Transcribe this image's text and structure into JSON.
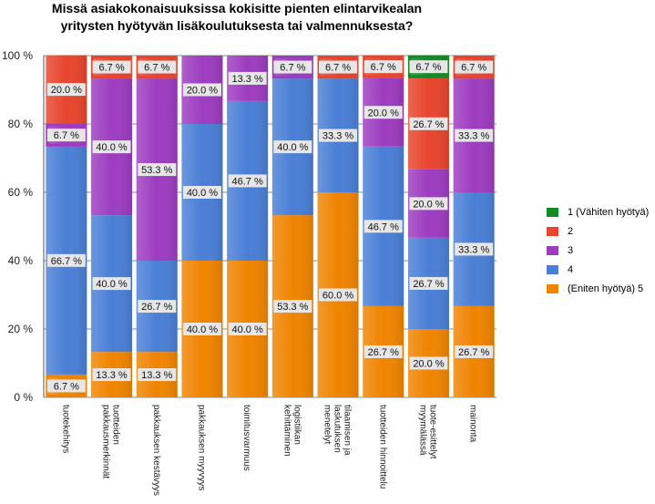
{
  "chart_data": {
    "type": "bar",
    "stacked": true,
    "percent": true,
    "title_lines": [
      "Missä asiakokonaisuuksissa kokisitte pienten elintarvikealan",
      "yritysten hyötyvän lisäkoulutuksesta tai valmennuksesta?"
    ],
    "y_ticks": [
      "0 %",
      "20 %",
      "40 %",
      "60 %",
      "80 %",
      "100 %"
    ],
    "ylim": [
      0,
      100
    ],
    "grid": true,
    "legend_position": "right",
    "categories": [
      "tuotekehitys",
      "tuotteiden pakkausmerkinnät",
      "pakkauksen kestävyys",
      "pakkauksen myyvyys",
      "toimitusvarmuus",
      "logistiikan kehittäminen",
      "tilaamisen ja laskutuksen menetelyt",
      "tuotteiden hinnoittelu",
      "tuote-esittelyt myymälässä",
      "mainonta"
    ],
    "category_lines": [
      [
        "tuotekehitys"
      ],
      [
        "tuotteiden",
        "pakkausmerkinnät"
      ],
      [
        "pakkauksen kestävyys"
      ],
      [
        "pakkauksen myyvyys"
      ],
      [
        "toimitusvarmuus"
      ],
      [
        "logistiikan",
        "kehittäminen"
      ],
      [
        "tilaamisen ja",
        "laskutuksen",
        "menetelyt"
      ],
      [
        "tuotteiden hinnoittelu"
      ],
      [
        "tuote-esittelyt",
        "myymälässä"
      ],
      [
        "mainonta"
      ]
    ],
    "series": [
      {
        "name": "(Eniten hyötyä) 5",
        "color": "#f08400",
        "values": [
          6.7,
          13.3,
          13.3,
          40.0,
          40.0,
          53.3,
          60.0,
          26.7,
          20.0,
          26.7
        ]
      },
      {
        "name": "4",
        "color": "#4a7fd6",
        "values": [
          66.7,
          40.0,
          26.7,
          40.0,
          46.7,
          40.0,
          33.3,
          46.7,
          26.7,
          33.3
        ]
      },
      {
        "name": "3",
        "color": "#9d3cc0",
        "values": [
          6.7,
          40.0,
          53.3,
          20.0,
          13.3,
          6.7,
          0,
          20.0,
          20.0,
          33.3
        ]
      },
      {
        "name": "2",
        "color": "#e8452d",
        "values": [
          20.0,
          6.7,
          6.7,
          0,
          0,
          0,
          6.7,
          6.7,
          26.7,
          6.7
        ]
      },
      {
        "name": "1 (Vähiten hyötyä)",
        "color": "#138a24",
        "values": [
          0,
          0,
          0,
          0,
          0,
          0,
          0,
          0,
          6.7,
          0
        ]
      }
    ],
    "data_labels": [
      [
        "6.7 %",
        "66.7 %",
        "6.7 %",
        "20.0 %",
        ""
      ],
      [
        "13.3 %",
        "40.0 %",
        "40.0 %",
        "6.7 %",
        ""
      ],
      [
        "13.3 %",
        "26.7 %",
        "53.3 %",
        "6.7 %",
        ""
      ],
      [
        "40.0 %",
        "40.0 %",
        "20.0 %",
        "",
        ""
      ],
      [
        "40.0 %",
        "46.7 %",
        "13.3 %",
        "",
        ""
      ],
      [
        "53.3 %",
        "40.0 %",
        "6.7 %",
        "",
        ""
      ],
      [
        "60.0 %",
        "33.3 %",
        "",
        "6.7 %",
        ""
      ],
      [
        "26.7 %",
        "46.7 %",
        "20.0 %",
        "6.7 %",
        ""
      ],
      [
        "20.0 %",
        "26.7 %",
        "20.0 %",
        "26.7 %",
        "6.7 %"
      ],
      [
        "26.7 %",
        "33.3 %",
        "33.3 %",
        "6.7 %",
        ""
      ]
    ],
    "legend": [
      {
        "label": "1 (Vähiten hyötyä)",
        "color": "#138a24"
      },
      {
        "label": "2",
        "color": "#e8452d"
      },
      {
        "label": "3",
        "color": "#9d3cc0"
      },
      {
        "label": "4",
        "color": "#4a7fd6"
      },
      {
        "label": "(Eniten hyötyä) 5",
        "color": "#f08400"
      }
    ]
  }
}
